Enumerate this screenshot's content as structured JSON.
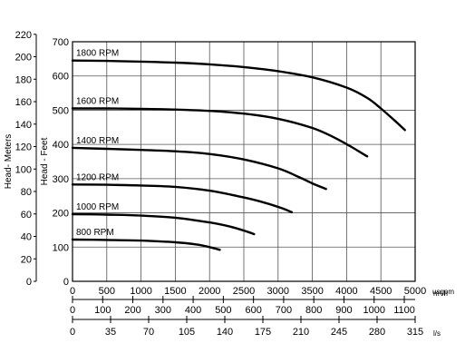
{
  "chart_data": {
    "type": "line",
    "title": "",
    "xlabel": "usgpm",
    "ylabel": "Head - Feet",
    "xlim": [
      0,
      5000
    ],
    "ylim": [
      0,
      700
    ],
    "grid": true,
    "x_ticks": [
      "0",
      "500",
      "1000",
      "1500",
      "2000",
      "2500",
      "3000",
      "3500",
      "4000",
      "4500",
      "5000"
    ],
    "y_ticks": [
      "0",
      "100",
      "200",
      "300",
      "400",
      "500",
      "600",
      "700"
    ],
    "secondary_y_axis": {
      "label": "Head- Meters",
      "lim": [
        0,
        220
      ],
      "ticks": [
        "0",
        "20",
        "40",
        "60",
        "80",
        "100",
        "120",
        "140",
        "160",
        "180",
        "200",
        "220"
      ]
    },
    "secondary_x_axes": [
      {
        "unit": "m³/h",
        "lim": [
          0,
          1136
        ],
        "ticks": [
          "0",
          "100",
          "200",
          "300",
          "400",
          "500",
          "600",
          "700",
          "800",
          "900",
          "1000",
          "1100"
        ],
        "tick_values": [
          0,
          100,
          200,
          300,
          400,
          500,
          600,
          700,
          800,
          900,
          1000,
          1100
        ]
      },
      {
        "unit": "l/s",
        "lim": [
          0,
          315
        ],
        "ticks": [
          "0",
          "35",
          "70",
          "105",
          "140",
          "175",
          "210",
          "245",
          "280",
          "315"
        ],
        "tick_values": [
          0,
          35,
          70,
          105,
          140,
          175,
          210,
          245,
          280,
          315
        ]
      }
    ],
    "series": [
      {
        "name": "800 RPM",
        "x": [
          0,
          500,
          1000,
          1500,
          1800,
          2000,
          2150
        ],
        "y": [
          122,
          121,
          119,
          114,
          108,
          100,
          92
        ]
      },
      {
        "name": "1000 RPM",
        "x": [
          0,
          500,
          1000,
          1500,
          2000,
          2300,
          2550,
          2650
        ],
        "y": [
          196,
          195,
          192,
          186,
          172,
          160,
          145,
          138
        ]
      },
      {
        "name": "1200 RPM",
        "x": [
          0,
          500,
          1000,
          1500,
          2000,
          2500,
          2800,
          3050,
          3200
        ],
        "y": [
          283,
          282,
          280,
          276,
          265,
          245,
          230,
          214,
          202
        ]
      },
      {
        "name": "1400 RPM",
        "x": [
          0,
          500,
          1000,
          1500,
          2000,
          2500,
          3000,
          3300,
          3500,
          3700
        ],
        "y": [
          390,
          387,
          384,
          380,
          372,
          356,
          330,
          305,
          286,
          270
        ]
      },
      {
        "name": "1600 RPM",
        "x": [
          0,
          500,
          1000,
          1500,
          2000,
          2500,
          3000,
          3500,
          3800,
          4050,
          4300
        ],
        "y": [
          505,
          505,
          504,
          502,
          498,
          490,
          475,
          448,
          422,
          395,
          365
        ]
      },
      {
        "name": "1800 RPM",
        "x": [
          0,
          500,
          1000,
          1500,
          2000,
          2500,
          3000,
          3500,
          4000,
          4300,
          4500,
          4700,
          4850
        ],
        "y": [
          645,
          644,
          642,
          639,
          634,
          626,
          614,
          596,
          566,
          536,
          505,
          470,
          442
        ]
      }
    ]
  }
}
